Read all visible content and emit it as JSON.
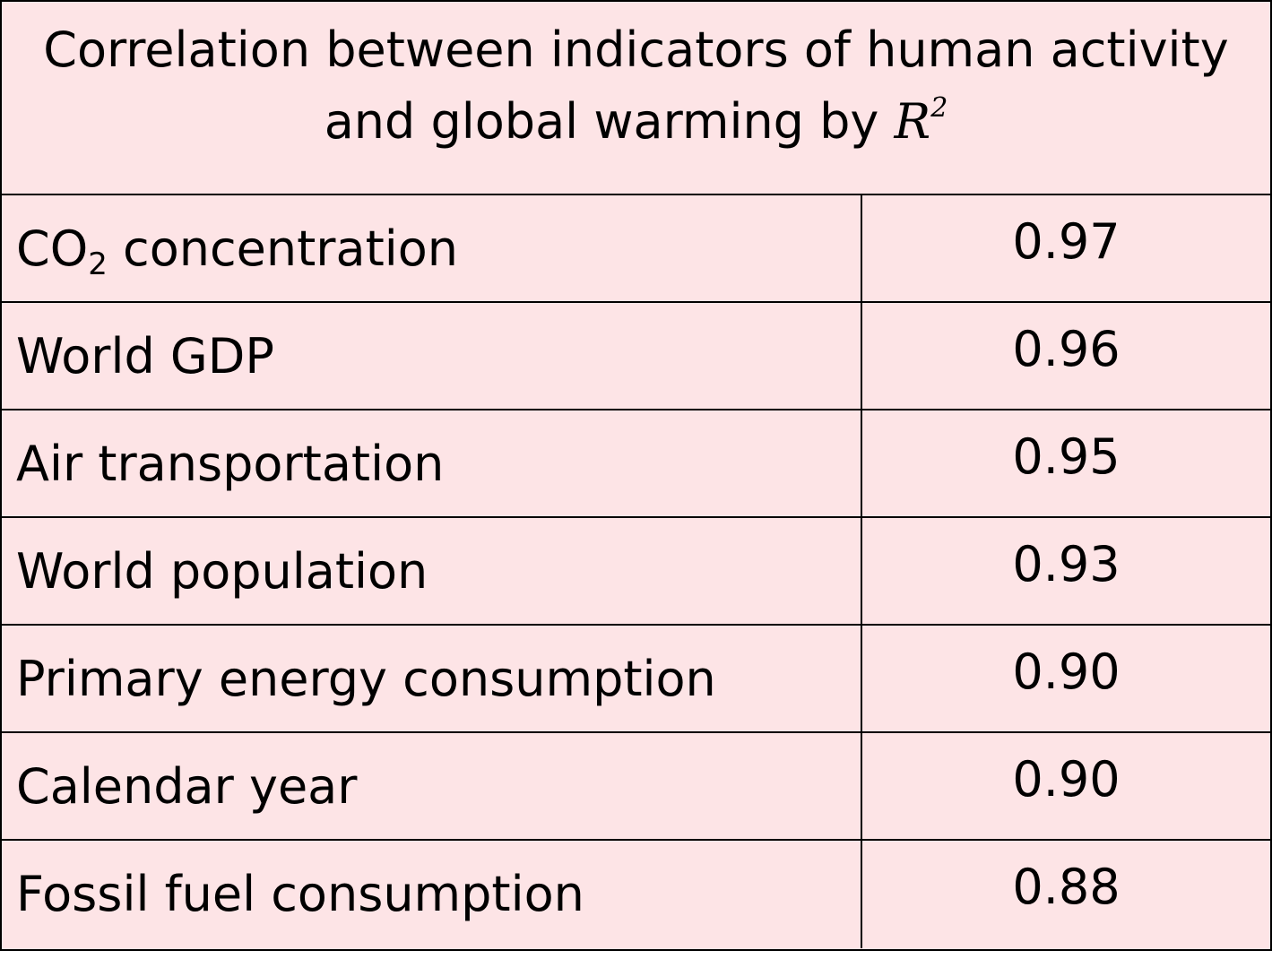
{
  "title": {
    "line1": "Correlation between indicators of human activity",
    "line2_prefix": "and global warming by ",
    "variable": "R",
    "superscript": "2"
  },
  "rows": [
    {
      "label_prefix": "CO",
      "label_subscript": "2",
      "label_suffix": " concentration",
      "value": "0.97"
    },
    {
      "label": "World GDP",
      "value": "0.96"
    },
    {
      "label": "Air transportation",
      "value": "0.95"
    },
    {
      "label": "World population",
      "value": "0.93"
    },
    {
      "label": "Primary energy consumption",
      "value": "0.90"
    },
    {
      "label": "Calendar year",
      "value": "0.90"
    },
    {
      "label": "Fossil fuel consumption",
      "value": "0.88"
    }
  ],
  "colors": {
    "background": "#fde4e6",
    "border": "#000000",
    "text": "#000000"
  }
}
